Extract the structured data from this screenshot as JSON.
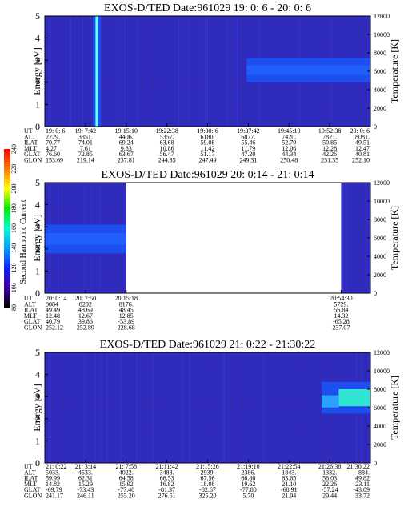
{
  "colors": {
    "background": "#2c2cc2",
    "speckle": "#5a2470",
    "burst_core": "#66ffff",
    "band": "#1d4ff0",
    "hot": "#33ffcc"
  },
  "colorbar": {
    "label": "Second Harmonic Current",
    "ticks": [
      "240",
      "220",
      "200",
      "180",
      "160",
      "140",
      "120",
      "100",
      "80"
    ],
    "stops": [
      "#ff0000",
      "#ff7700",
      "#ffff00",
      "#00ee00",
      "#00ffcc",
      "#00a0ff",
      "#1020ff",
      "#3a00a0",
      "#000000"
    ]
  },
  "chart_data": [
    {
      "type": "heatmap",
      "title": "EXOS-D/TED   Date:961029  19: 0: 6 - 20: 0: 6",
      "ylabel": "Energy [eV]",
      "y2label": "Temperature [K]",
      "ylim": [
        0,
        5
      ],
      "y2lim": [
        0,
        12000
      ],
      "yticks": [
        "0",
        "1",
        "2",
        "3",
        "4",
        "5"
      ],
      "y2ticks": [
        "0",
        "2000",
        "4000",
        "6000",
        "8000",
        "10000",
        "12000"
      ],
      "data_extent": [
        0,
        1
      ],
      "features": [
        {
          "kind": "burst",
          "x": 0.16,
          "width": 0.012
        },
        {
          "kind": "band",
          "x_start": 0.62,
          "x_end": 1.0,
          "y_start": 2.0,
          "y_end": 3.1
        }
      ],
      "orbit_table": {
        "row_labels": [
          "UT",
          "ALT",
          "ILAT",
          "MLT",
          "GLAT",
          "GLON"
        ],
        "columns": [
          [
            "19: 0: 6",
            "2229.",
            "70.77",
            "4.27",
            "76.60",
            "153.69"
          ],
          [
            "19: 7:42",
            "3351.",
            "74.01",
            "7.61",
            "72.85",
            "219.14"
          ],
          [
            "19:15:10",
            "4406.",
            "69.24",
            "9.83",
            "63.67",
            "237.81"
          ],
          [
            "19:22:38",
            "5357.",
            "63.68",
            "10.86",
            "56.47",
            "244.35"
          ],
          [
            "19:30: 6",
            "6180.",
            "59.08",
            "11.42",
            "51.17",
            "247.49"
          ],
          [
            "19:37:42",
            "6877.",
            "55.46",
            "11.79",
            "47.20",
            "249.31"
          ],
          [
            "19:45:10",
            "7420.",
            "52.79",
            "12.06",
            "44.34",
            "250.48"
          ],
          [
            "19:52:38",
            "7821.",
            "50.85",
            "12.28",
            "42.26",
            "251.35"
          ],
          [
            "20: 0: 6",
            "8081.",
            "49.51",
            "12.47",
            "40.81",
            "252.10"
          ]
        ]
      }
    },
    {
      "type": "heatmap",
      "title": "EXOS-D/TED   Date:961029  20: 0:14 - 21: 0:14",
      "ylabel": "Energy [eV]",
      "y2label": "Temperature [K]",
      "ylim": [
        0,
        5
      ],
      "y2lim": [
        0,
        12000
      ],
      "yticks": [
        "0",
        "1",
        "2",
        "3",
        "4",
        "5"
      ],
      "y2ticks": [
        "0",
        "2000",
        "4000",
        "6000",
        "8000",
        "10000",
        "12000"
      ],
      "data_extent": [
        0,
        0.25
      ],
      "data_extent2": [
        0.91,
        1.0
      ],
      "features": [
        {
          "kind": "band",
          "x_start": 0.0,
          "x_end": 0.25,
          "y_start": 1.8,
          "y_end": 3.1
        }
      ],
      "orbit_table": {
        "row_labels": [
          "UT",
          "ALT",
          "ILAT",
          "MLT",
          "GLAT",
          "GLON"
        ],
        "columns": [
          [
            "20: 0:14",
            "8084",
            "49.49",
            "12.48",
            "40.79",
            "252.12"
          ],
          [
            "20: 7:50",
            "8202",
            "48.69",
            "12.67",
            "39.86",
            "252.89"
          ],
          [
            "20:15:18",
            "8176.",
            "48.45",
            "12.85",
            "-53.89",
            "228.68"
          ],
          [
            "20:54:30",
            "5729.",
            "56.84",
            "14.32",
            "-65.28",
            "237.07"
          ]
        ],
        "column_positions": [
          0.0,
          0.125,
          0.25,
          0.91
        ]
      }
    },
    {
      "type": "heatmap",
      "title": "EXOS-D/TED   Date:961029  21: 0:22 - 21:30:22",
      "ylabel": "Energy [eV]",
      "y2label": "Temperature [K]",
      "ylim": [
        0,
        5
      ],
      "y2lim": [
        0,
        12000
      ],
      "yticks": [
        "0",
        "1",
        "2",
        "3",
        "4",
        "5"
      ],
      "y2ticks": [
        "0",
        "2000",
        "4000",
        "6000",
        "8000",
        "10000",
        "12000"
      ],
      "data_extent": [
        0,
        1
      ],
      "features": [
        {
          "kind": "hot",
          "x_start": 0.85,
          "x_end": 1.0,
          "y_start": 2.4,
          "y_end": 3.5
        }
      ],
      "orbit_table": {
        "row_labels": [
          "UT",
          "ALT",
          "ILAT",
          "MLT",
          "GLAT",
          "GLON"
        ],
        "columns": [
          [
            "21: 0:22",
            "5033.",
            "59.99",
            "14.82",
            "-69.79",
            "241.17"
          ],
          [
            "21: 3:14",
            "4533.",
            "62.31",
            "15.29",
            "-73.43",
            "246.11"
          ],
          [
            "21: 7:58",
            "4022.",
            "64.58",
            "15.92",
            "-77.40",
            "255.20"
          ],
          [
            "21:11:42",
            "3488.",
            "66.53",
            "16.82",
            "-81.37",
            "276.51"
          ],
          [
            "21:15:26",
            "2939.",
            "67.56",
            "18.08",
            "-82.67",
            "325.20"
          ],
          [
            "21:19:10",
            "2386.",
            "66.80",
            "19.62",
            "-77.80",
            "5.70"
          ],
          [
            "21:22:54",
            "1843.",
            "63.65",
            "21.10",
            "-68.91",
            "21.94"
          ],
          [
            "21:26:38",
            "1332.",
            "58.03",
            "22.26",
            "-57.24",
            "29.44"
          ],
          [
            "21:30:22",
            "884.",
            "49.82",
            "23.11",
            "-43.09",
            "33.72"
          ]
        ]
      }
    }
  ]
}
